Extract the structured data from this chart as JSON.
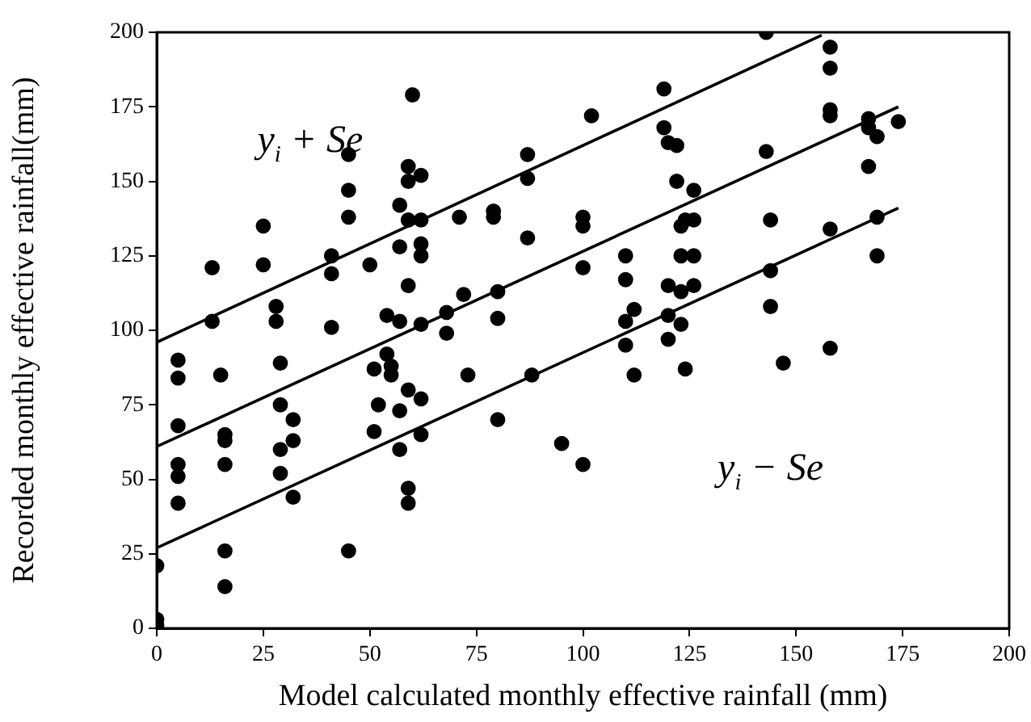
{
  "chart_data": {
    "type": "scatter",
    "xlabel": "Model calculated monthly effective rainfall (mm)",
    "ylabel": "Recorded monthly effective rainfall(mm)",
    "xlim": [
      0,
      200
    ],
    "xticks": [
      0,
      25,
      50,
      75,
      100,
      125,
      150,
      175,
      200
    ],
    "ylim": [
      0,
      200
    ],
    "yticks": [
      0,
      25,
      50,
      75,
      100,
      125,
      150,
      175,
      200
    ],
    "grid": false,
    "legend": false,
    "marker": "circle",
    "series": [
      {
        "type": "scatter",
        "color": "#000000",
        "x": [
          0,
          0,
          0,
          5,
          5,
          5,
          5,
          5,
          5,
          13,
          13,
          15,
          16,
          16,
          16,
          16,
          16,
          25,
          25,
          28,
          28,
          29,
          29,
          29,
          29,
          32,
          32,
          32,
          41,
          41,
          41,
          45,
          45,
          45,
          45,
          50,
          51,
          51,
          52,
          54,
          54,
          55,
          55,
          57,
          57,
          57,
          57,
          57,
          59,
          59,
          59,
          59,
          59,
          59,
          59,
          60,
          62,
          62,
          62,
          62,
          62,
          62,
          62,
          68,
          68,
          71,
          72,
          73,
          79,
          79,
          80,
          80,
          80,
          87,
          87,
          87,
          88,
          95,
          100,
          100,
          100,
          100,
          102,
          110,
          110,
          110,
          110,
          112,
          112,
          119,
          119,
          120,
          120,
          120,
          120,
          122,
          122,
          123,
          123,
          123,
          123,
          124,
          124,
          126,
          126,
          126,
          126,
          143,
          143,
          144,
          144,
          144,
          147,
          158,
          158,
          158,
          158,
          158,
          158,
          167,
          167,
          167,
          169,
          169,
          169,
          174
        ],
        "values": [
          21,
          3,
          1,
          90,
          84,
          68,
          55,
          51,
          42,
          121,
          103,
          85,
          65,
          63,
          26,
          14,
          55,
          135,
          122,
          108,
          103,
          89,
          75,
          60,
          52,
          70,
          63,
          44,
          125,
          119,
          101,
          159,
          147,
          138,
          26,
          122,
          87,
          66,
          75,
          105,
          92,
          85,
          88,
          142,
          128,
          103,
          60,
          73,
          155,
          150,
          137,
          115,
          80,
          47,
          42,
          179,
          152,
          137,
          129,
          125,
          102,
          77,
          65,
          106,
          99,
          138,
          112,
          85,
          140,
          138,
          113,
          104,
          70,
          159,
          151,
          131,
          85,
          62,
          138,
          135,
          121,
          55,
          172,
          125,
          117,
          103,
          95,
          107,
          85,
          181,
          168,
          163,
          115,
          105,
          97,
          162,
          150,
          135,
          125,
          113,
          102,
          87,
          137,
          147,
          137,
          125,
          115,
          200,
          160,
          137,
          120,
          108,
          89,
          195,
          188,
          174,
          172,
          134,
          94,
          171,
          168,
          155,
          165,
          138,
          125,
          170
        ]
      },
      {
        "type": "line",
        "color": "#000000",
        "marker": "none",
        "x": [
          0,
          156
        ],
        "values": [
          96,
          199
        ]
      },
      {
        "type": "line",
        "color": "#000000",
        "marker": "none",
        "x": [
          0,
          174
        ],
        "values": [
          61,
          175
        ]
      },
      {
        "type": "line",
        "color": "#000000",
        "marker": "none",
        "x": [
          0,
          174
        ],
        "values": [
          27,
          141
        ]
      }
    ],
    "annotations": [
      "y$_{i}$ + Se",
      "y$_{i}$ − Se"
    ]
  }
}
